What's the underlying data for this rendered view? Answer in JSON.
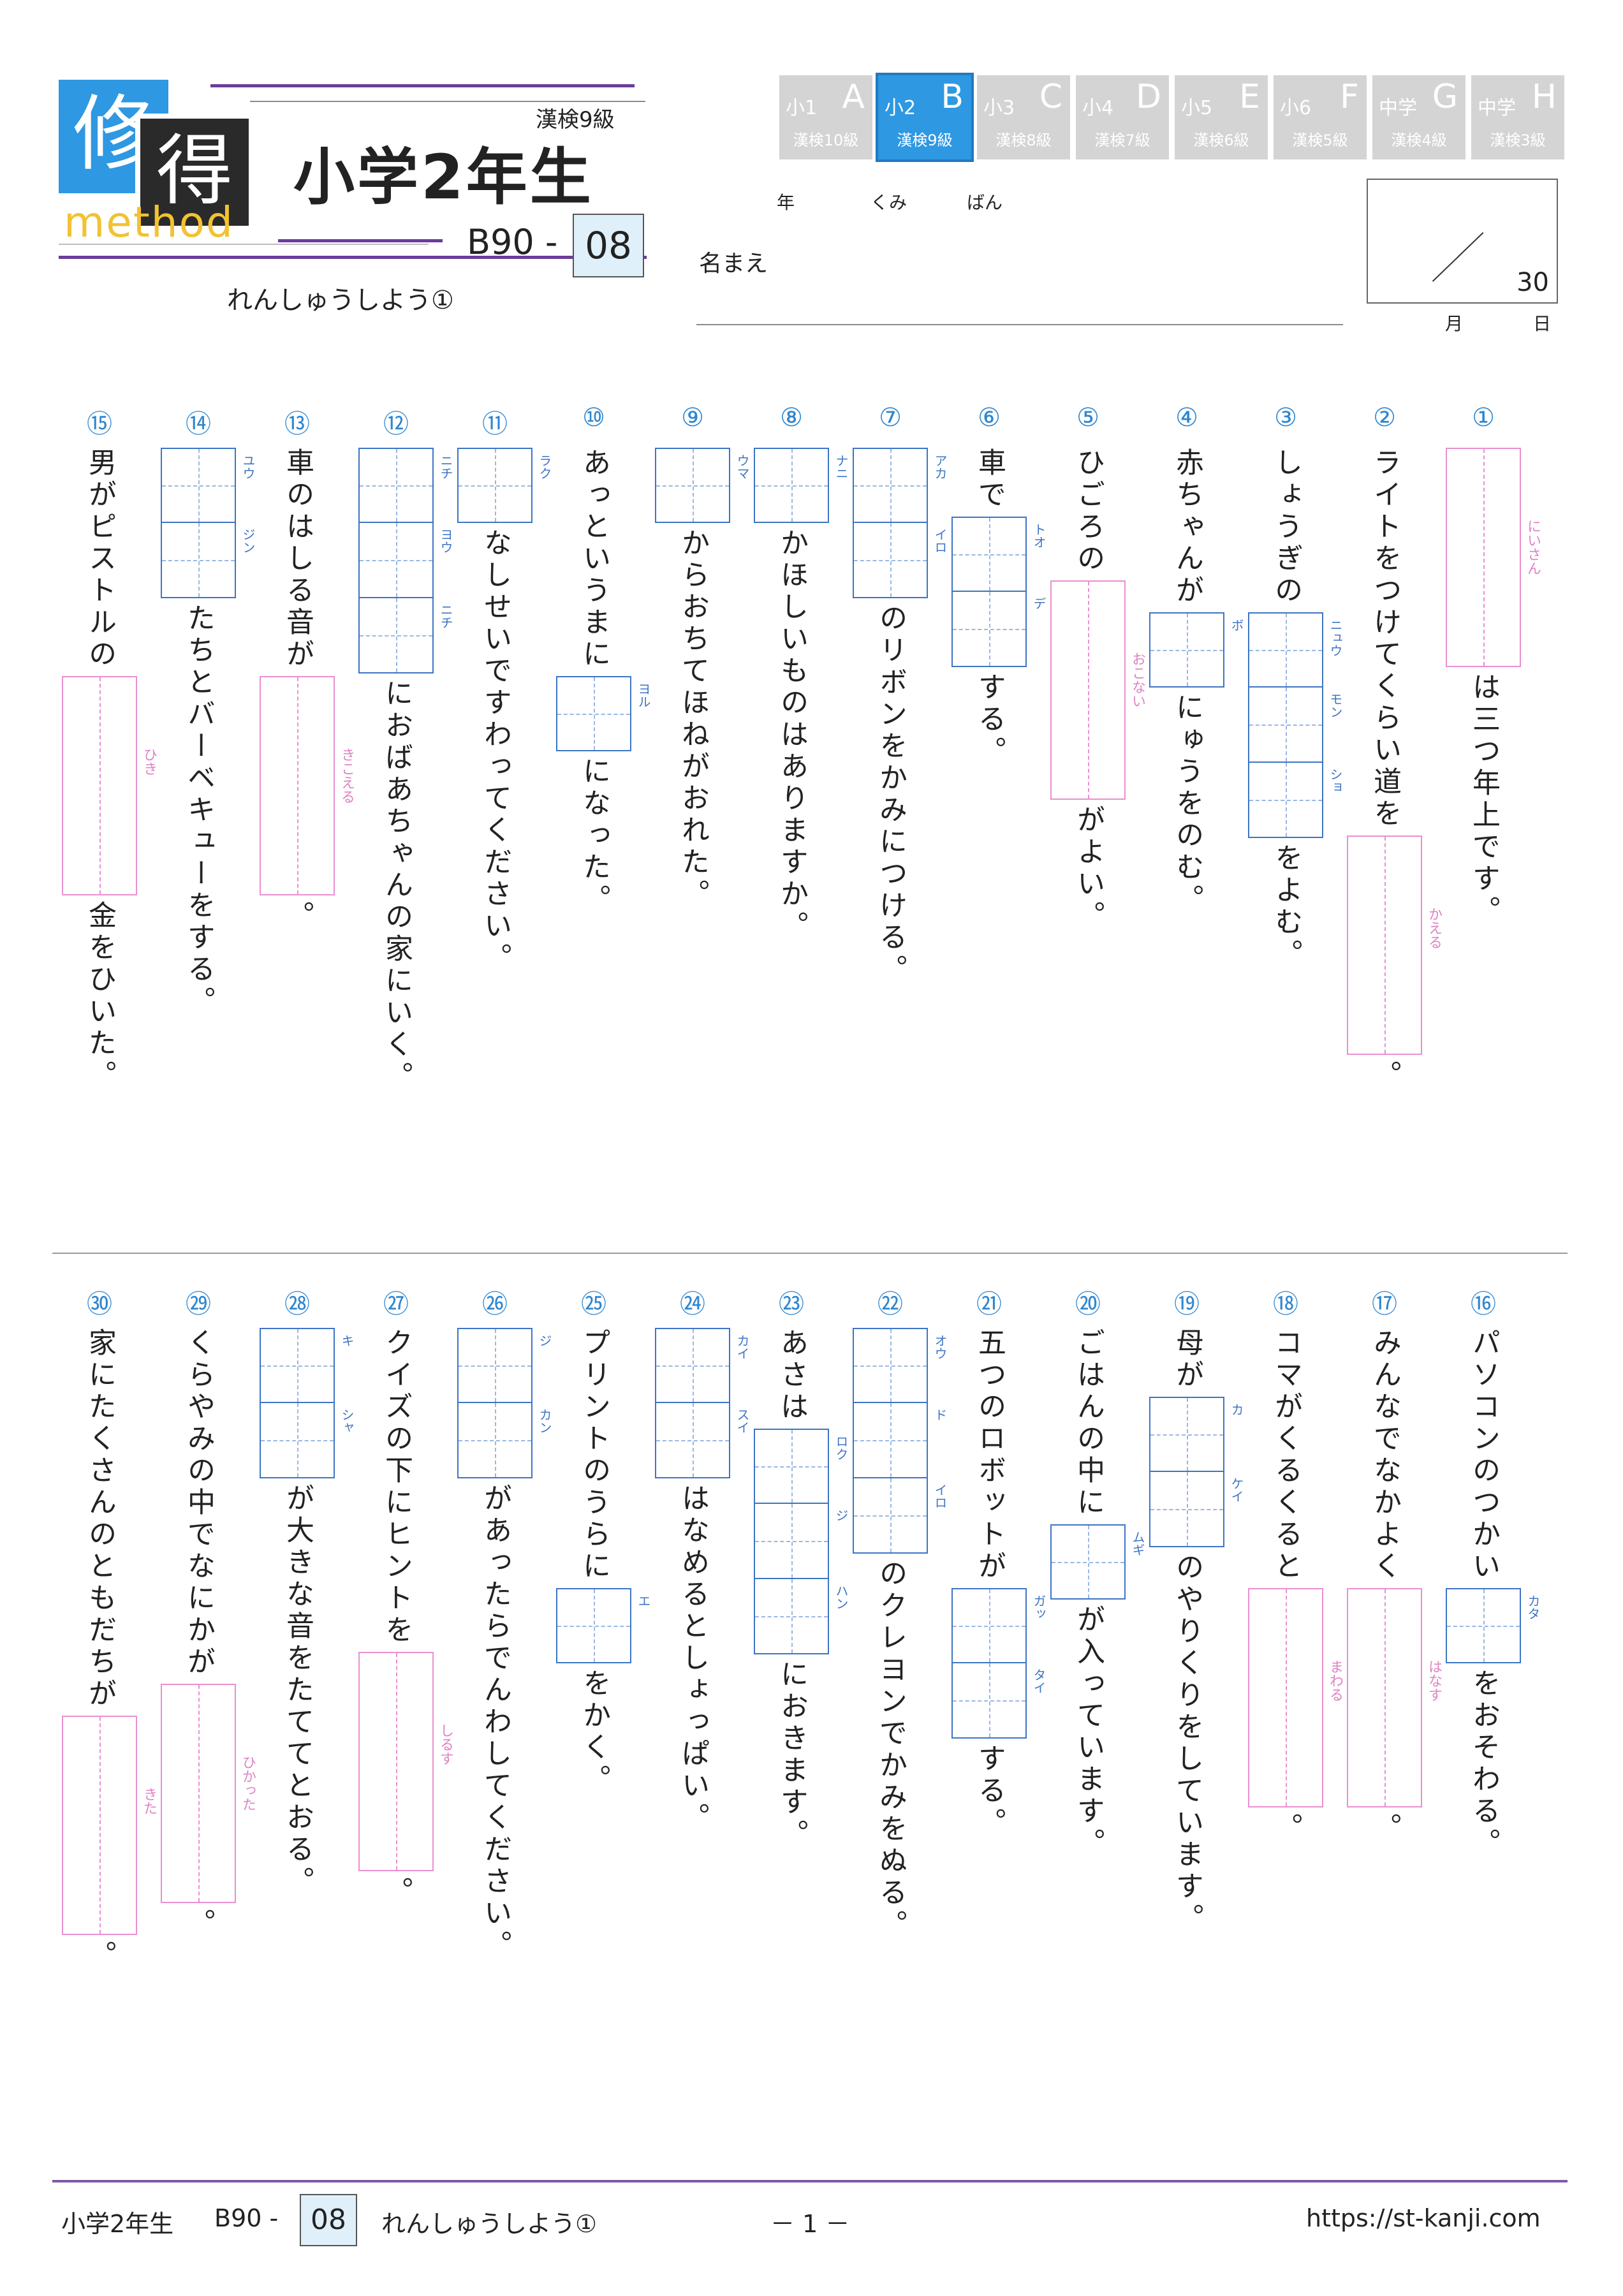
{
  "header": {
    "logo_char1": "修",
    "logo_char2": "得",
    "logo_method": "method",
    "kanken_level": "漢検9級",
    "grade_title": "小学2年生",
    "code_prefix": "B90 -",
    "code_number": "08",
    "subtitle": "れんしゅうしよう①",
    "grade_tabs": [
      {
        "grade": "小1",
        "letter": "A",
        "kanken": "漢検10級",
        "active": false
      },
      {
        "grade": "小2",
        "letter": "B",
        "kanken": "漢検9級",
        "active": true
      },
      {
        "grade": "小3",
        "letter": "C",
        "kanken": "漢検8級",
        "active": false
      },
      {
        "grade": "小4",
        "letter": "D",
        "kanken": "漢検7級",
        "active": false
      },
      {
        "grade": "小5",
        "letter": "E",
        "kanken": "漢検6級",
        "active": false
      },
      {
        "grade": "小6",
        "letter": "F",
        "kanken": "漢検5級",
        "active": false
      },
      {
        "grade": "中学",
        "letter": "G",
        "kanken": "漢検4級",
        "active": false
      },
      {
        "grade": "中学",
        "letter": "H",
        "kanken": "漢検3級",
        "active": false
      }
    ],
    "year_label": "年",
    "class_label": "くみ",
    "number_label": "ばん",
    "name_label": "名まえ",
    "score_total": "30",
    "month_label": "月",
    "day_label": "日"
  },
  "questions": [
    {
      "num": "①",
      "parts": [
        {
          "t": "kana",
          "f": "にいさん"
        },
        {
          "t": "text",
          "v": "は三つ年上です。"
        }
      ]
    },
    {
      "num": "②",
      "parts": [
        {
          "t": "text",
          "v": "ライトをつけてくらい道を"
        },
        {
          "t": "kana",
          "f": "かえる"
        },
        {
          "t": "text",
          "v": "。"
        }
      ]
    },
    {
      "num": "③",
      "parts": [
        {
          "t": "text",
          "v": "しょうぎの"
        },
        {
          "t": "kanji",
          "f": [
            "ニュウ",
            "モン",
            "ショ"
          ]
        },
        {
          "t": "text",
          "v": "をよむ。"
        }
      ]
    },
    {
      "num": "④",
      "parts": [
        {
          "t": "text",
          "v": "赤ちゃんが"
        },
        {
          "t": "kanji",
          "f": [
            "ボ"
          ]
        },
        {
          "t": "text",
          "v": "にゅうをのむ。"
        }
      ]
    },
    {
      "num": "⑤",
      "parts": [
        {
          "t": "text",
          "v": "ひごろの"
        },
        {
          "t": "kana",
          "f": "おこない"
        },
        {
          "t": "text",
          "v": "がよい。"
        }
      ]
    },
    {
      "num": "⑥",
      "parts": [
        {
          "t": "text",
          "v": "車で"
        },
        {
          "t": "kanji",
          "f": [
            "トオ",
            "デ"
          ]
        },
        {
          "t": "text",
          "v": "する。"
        }
      ]
    },
    {
      "num": "⑦",
      "parts": [
        {
          "t": "kanji",
          "f": [
            "アカ",
            "イロ"
          ]
        },
        {
          "t": "text",
          "v": "のリボンをかみにつける。"
        }
      ]
    },
    {
      "num": "⑧",
      "parts": [
        {
          "t": "kanji",
          "f": [
            "ナニ"
          ]
        },
        {
          "t": "text",
          "v": "かほしいものはありますか。"
        }
      ]
    },
    {
      "num": "⑨",
      "parts": [
        {
          "t": "kanji",
          "f": [
            "ウマ"
          ]
        },
        {
          "t": "text",
          "v": "からおちてほねがおれた。"
        }
      ]
    },
    {
      "num": "⑩",
      "parts": [
        {
          "t": "text",
          "v": "あっというまに"
        },
        {
          "t": "kanji",
          "f": [
            "ヨル"
          ]
        },
        {
          "t": "text",
          "v": "になった。"
        }
      ]
    },
    {
      "num": "⑪",
      "parts": [
        {
          "t": "kanji",
          "f": [
            "ラク"
          ]
        },
        {
          "t": "text",
          "v": "なしせいですわってください。"
        }
      ]
    },
    {
      "num": "⑫",
      "parts": [
        {
          "t": "kanji",
          "f": [
            "ニチ",
            "ヨウ",
            "ニチ"
          ]
        },
        {
          "t": "text",
          "v": "におばあちゃんの家にいく。"
        }
      ]
    },
    {
      "num": "⑬",
      "parts": [
        {
          "t": "text",
          "v": "車のはしる音が"
        },
        {
          "t": "kana",
          "f": "きこえる"
        },
        {
          "t": "text",
          "v": "。"
        }
      ]
    },
    {
      "num": "⑭",
      "parts": [
        {
          "t": "kanji",
          "f": [
            "ユウ",
            "ジン"
          ]
        },
        {
          "t": "text",
          "v": "たちとバーベキューをする。"
        }
      ]
    },
    {
      "num": "⑮",
      "parts": [
        {
          "t": "text",
          "v": "男がピストルの"
        },
        {
          "t": "kana",
          "f": "ひき"
        },
        {
          "t": "text",
          "v": "金をひいた。"
        }
      ]
    },
    {
      "num": "⑯",
      "parts": [
        {
          "t": "text",
          "v": "パソコンのつかい"
        },
        {
          "t": "kanji",
          "f": [
            "カタ"
          ]
        },
        {
          "t": "text",
          "v": "をおそわる。"
        }
      ]
    },
    {
      "num": "⑰",
      "parts": [
        {
          "t": "text",
          "v": "みんなでなかよく"
        },
        {
          "t": "kana",
          "f": "はなす"
        },
        {
          "t": "text",
          "v": "。"
        }
      ]
    },
    {
      "num": "⑱",
      "parts": [
        {
          "t": "text",
          "v": "コマがくるくると"
        },
        {
          "t": "kana",
          "f": "まわる"
        },
        {
          "t": "text",
          "v": "。"
        }
      ]
    },
    {
      "num": "⑲",
      "parts": [
        {
          "t": "text",
          "v": "母が"
        },
        {
          "t": "kanji",
          "f": [
            "カ",
            "ケイ"
          ]
        },
        {
          "t": "text",
          "v": "のやりくりをしています。"
        }
      ]
    },
    {
      "num": "⑳",
      "parts": [
        {
          "t": "text",
          "v": "ごはんの中に"
        },
        {
          "t": "kanji",
          "f": [
            "ムギ"
          ]
        },
        {
          "t": "text",
          "v": "が入っています。"
        }
      ]
    },
    {
      "num": "㉑",
      "parts": [
        {
          "t": "text",
          "v": "五つのロボットが"
        },
        {
          "t": "kanji",
          "f": [
            "ガッ",
            "タイ"
          ]
        },
        {
          "t": "text",
          "v": "する。"
        }
      ]
    },
    {
      "num": "㉒",
      "parts": [
        {
          "t": "kanji",
          "f": [
            "オウ",
            "ド",
            "イロ"
          ]
        },
        {
          "t": "text",
          "v": "のクレヨンでかみをぬる。"
        }
      ]
    },
    {
      "num": "㉓",
      "parts": [
        {
          "t": "text",
          "v": "あさは"
        },
        {
          "t": "kanji",
          "f": [
            "ロク",
            "ジ",
            "ハン"
          ]
        },
        {
          "t": "text",
          "v": "におきます。"
        }
      ]
    },
    {
      "num": "㉔",
      "parts": [
        {
          "t": "kanji",
          "f": [
            "カイ",
            "スイ"
          ]
        },
        {
          "t": "text",
          "v": "はなめるとしょっぱい。"
        }
      ]
    },
    {
      "num": "㉕",
      "parts": [
        {
          "t": "text",
          "v": "プリントのうらに"
        },
        {
          "t": "kanji",
          "f": [
            "エ"
          ]
        },
        {
          "t": "text",
          "v": "をかく。"
        }
      ]
    },
    {
      "num": "㉖",
      "parts": [
        {
          "t": "kanji",
          "f": [
            "ジ",
            "カン"
          ]
        },
        {
          "t": "text",
          "v": "があったらでんわしてください。"
        }
      ]
    },
    {
      "num": "㉗",
      "parts": [
        {
          "t": "text",
          "v": "クイズの下にヒントを"
        },
        {
          "t": "kana",
          "f": "しるす"
        },
        {
          "t": "text",
          "v": "。"
        }
      ]
    },
    {
      "num": "㉘",
      "parts": [
        {
          "t": "kanji",
          "f": [
            "キ",
            "シャ"
          ]
        },
        {
          "t": "text",
          "v": "が大きな音をたててとおる。"
        }
      ]
    },
    {
      "num": "㉙",
      "parts": [
        {
          "t": "text",
          "v": "くらやみの中でなにかが"
        },
        {
          "t": "kana",
          "f": "ひかった"
        },
        {
          "t": "text",
          "v": "。"
        }
      ]
    },
    {
      "num": "㉚",
      "parts": [
        {
          "t": "text",
          "v": "家にたくさんのともだちが"
        },
        {
          "t": "kana",
          "f": "きた"
        },
        {
          "t": "text",
          "v": "。"
        }
      ]
    }
  ],
  "footer": {
    "grade": "小学2年生",
    "code_prefix": "B90 -",
    "code_number": "08",
    "title": "れんしゅうしよう①",
    "page": "－ 1 －",
    "url": "https://st-kanji.com"
  }
}
